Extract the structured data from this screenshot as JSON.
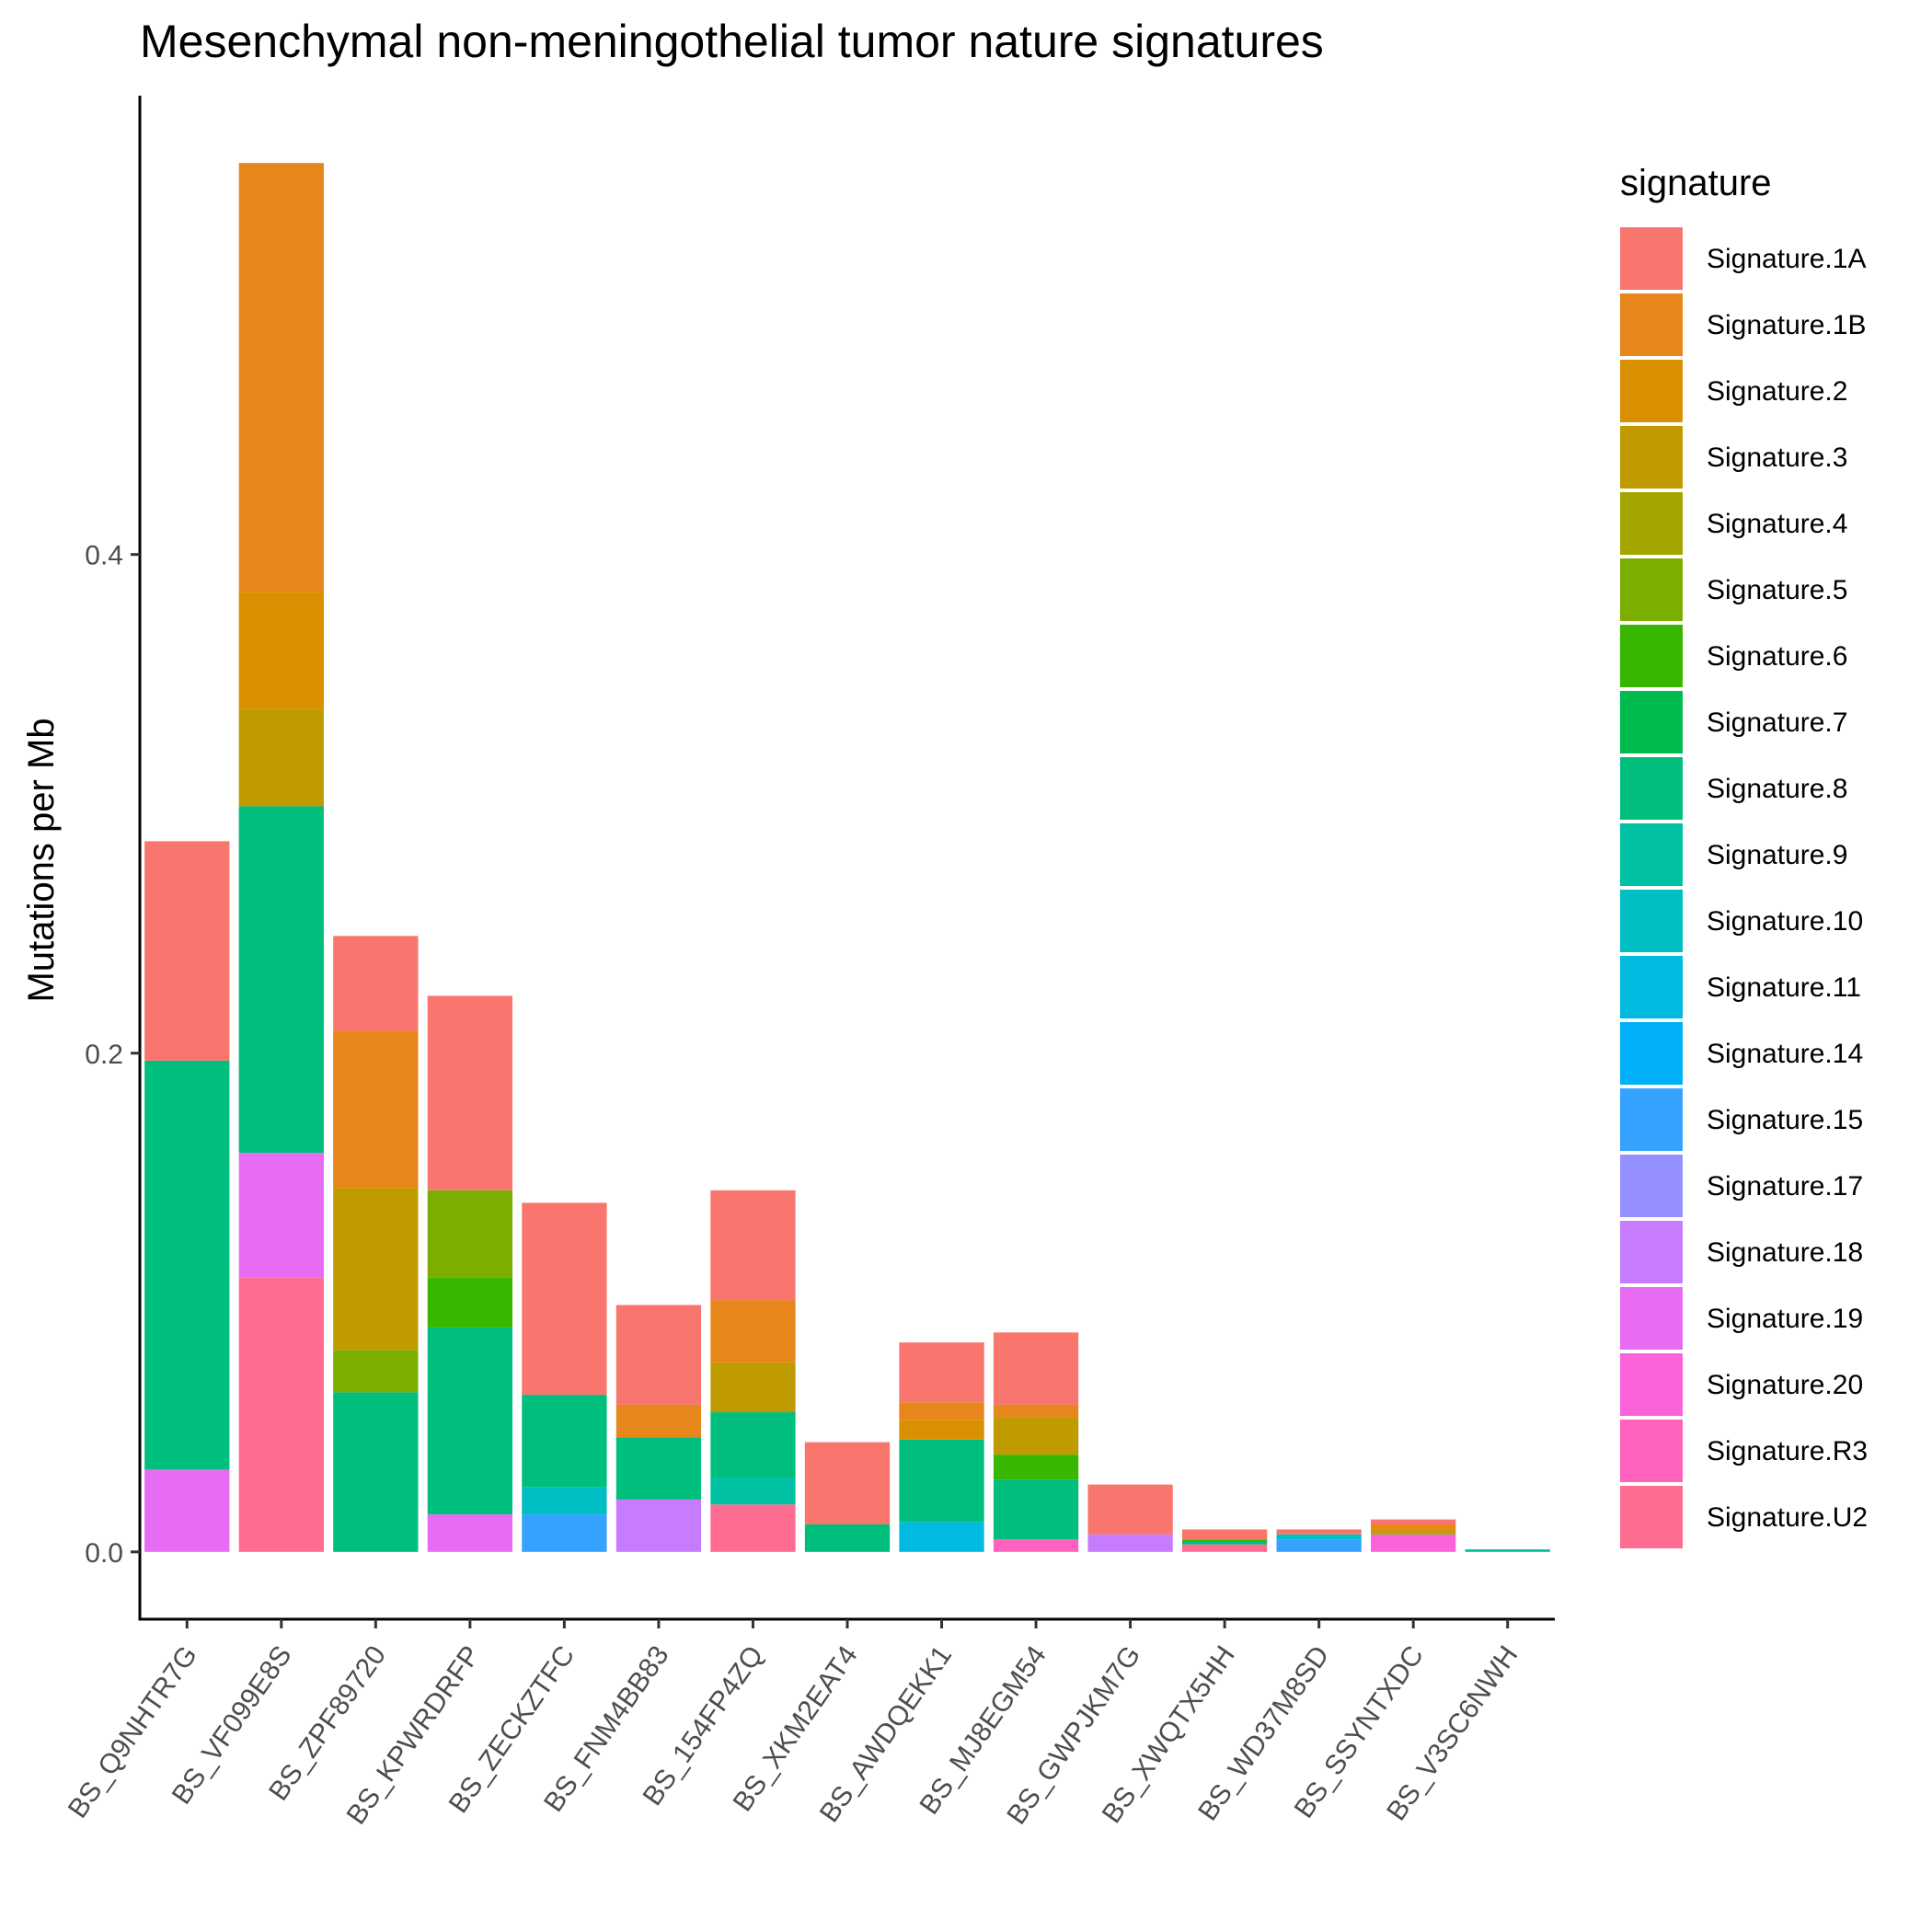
{
  "chart_data": {
    "type": "bar",
    "stacked": true,
    "title": "Mesenchymal non-meningothelial tumor nature signatures",
    "xlabel": "",
    "ylabel": "Mutations per Mb",
    "ylim": [
      -0.027,
      0.584
    ],
    "yticks": [
      0.0,
      0.2,
      0.4
    ],
    "ytick_labels": [
      "0.0",
      "0.2",
      "0.4"
    ],
    "grid": false,
    "legend": {
      "title": "signature",
      "position": "right"
    },
    "categories": [
      "BS_Q9NHTR7G",
      "BS_VF099E8S",
      "BS_ZPF89720",
      "BS_KPWRDRFP",
      "BS_ZECKZTFC",
      "BS_FNM4BB83",
      "BS_154FP4ZQ",
      "BS_XKM2EAT4",
      "BS_AWDQEKK1",
      "BS_MJ8EGM54",
      "BS_GWPJKM7G",
      "BS_XWQTX5HH",
      "BS_WD37M8SD",
      "BS_SSYNTXDC",
      "BS_V3SC6NWH"
    ],
    "series": [
      {
        "name": "Signature.1A",
        "color": "#F8766D",
        "values": [
          0.088,
          0,
          0.038,
          0.078,
          0.077,
          0.04,
          0.044,
          0.033,
          0.024,
          0.029,
          0.02,
          0.004,
          0.002,
          0.002,
          0
        ]
      },
      {
        "name": "Signature.1B",
        "color": "#E7861B",
        "values": [
          0,
          0.172,
          0.063,
          0,
          0,
          0.013,
          0.025,
          0,
          0.007,
          0.005,
          0,
          0,
          0,
          0.002,
          0
        ]
      },
      {
        "name": "Signature.2",
        "color": "#D89000",
        "values": [
          0,
          0.047,
          0,
          0,
          0,
          0,
          0,
          0,
          0.008,
          0,
          0,
          0,
          0,
          0.001,
          0
        ]
      },
      {
        "name": "Signature.3",
        "color": "#C09B00",
        "values": [
          0,
          0.039,
          0.065,
          0,
          0,
          0,
          0.02,
          0,
          0,
          0.015,
          0,
          0,
          0,
          0,
          0
        ]
      },
      {
        "name": "Signature.4",
        "color": "#A3A500",
        "values": [
          0,
          0,
          0,
          0,
          0,
          0,
          0,
          0,
          0,
          0,
          0,
          0,
          0,
          0.001,
          0
        ]
      },
      {
        "name": "Signature.5",
        "color": "#7CAE00",
        "values": [
          0,
          0,
          0.017,
          0.035,
          0,
          0,
          0,
          0,
          0,
          0,
          0,
          0,
          0,
          0,
          0
        ]
      },
      {
        "name": "Signature.6",
        "color": "#39B600",
        "values": [
          0,
          0,
          0,
          0.02,
          0,
          0,
          0,
          0,
          0,
          0.01,
          0,
          0.001,
          0,
          0,
          0
        ]
      },
      {
        "name": "Signature.7",
        "color": "#00BB4E",
        "values": [
          0,
          0,
          0,
          0,
          0,
          0,
          0,
          0,
          0,
          0,
          0,
          0,
          0,
          0,
          0
        ]
      },
      {
        "name": "Signature.8",
        "color": "#00BF7D",
        "values": [
          0.164,
          0.139,
          0.064,
          0.075,
          0.037,
          0.025,
          0.026,
          0.011,
          0.033,
          0.024,
          0,
          0.001,
          0,
          0,
          0
        ]
      },
      {
        "name": "Signature.9",
        "color": "#00C1A3",
        "values": [
          0,
          0,
          0,
          0,
          0,
          0,
          0.011,
          0,
          0,
          0,
          0,
          0,
          0,
          0,
          0.001
        ]
      },
      {
        "name": "Signature.10",
        "color": "#00BFC4",
        "values": [
          0,
          0,
          0,
          0,
          0.011,
          0,
          0,
          0,
          0,
          0,
          0,
          0,
          0.002,
          0,
          0
        ]
      },
      {
        "name": "Signature.11",
        "color": "#00BAE0",
        "values": [
          0,
          0,
          0,
          0,
          0,
          0,
          0,
          0,
          0.012,
          0,
          0,
          0,
          0,
          0,
          0
        ]
      },
      {
        "name": "Signature.14",
        "color": "#00B0F6",
        "values": [
          0,
          0,
          0,
          0,
          0,
          0,
          0,
          0,
          0,
          0,
          0,
          0,
          0,
          0,
          0
        ]
      },
      {
        "name": "Signature.15",
        "color": "#35A2FF",
        "values": [
          0,
          0,
          0,
          0,
          0.015,
          0,
          0,
          0,
          0,
          0,
          0,
          0,
          0.005,
          0,
          0
        ]
      },
      {
        "name": "Signature.17",
        "color": "#9590FF",
        "values": [
          0,
          0,
          0,
          0,
          0,
          0,
          0,
          0,
          0,
          0,
          0,
          0,
          0,
          0,
          0
        ]
      },
      {
        "name": "Signature.18",
        "color": "#C77CFF",
        "values": [
          0,
          0,
          0,
          0,
          0,
          0.021,
          0,
          0,
          0,
          0,
          0.007,
          0,
          0,
          0,
          0
        ]
      },
      {
        "name": "Signature.19",
        "color": "#E76BF3",
        "values": [
          0.033,
          0.05,
          0,
          0.015,
          0,
          0,
          0,
          0,
          0,
          0,
          0,
          0,
          0,
          0,
          0
        ]
      },
      {
        "name": "Signature.20",
        "color": "#FA62DB",
        "values": [
          0,
          0,
          0,
          0,
          0,
          0,
          0,
          0,
          0,
          0,
          0,
          0,
          0,
          0.007,
          0
        ]
      },
      {
        "name": "Signature.R3",
        "color": "#FF62BC",
        "values": [
          0,
          0,
          0,
          0,
          0,
          0,
          0,
          0,
          0,
          0.005,
          0,
          0,
          0,
          0,
          0
        ]
      },
      {
        "name": "Signature.U2",
        "color": "#FF6C91",
        "values": [
          0,
          0.11,
          0,
          0,
          0,
          0,
          0.019,
          0,
          0,
          0,
          0,
          0.003,
          0,
          0,
          0
        ]
      }
    ]
  }
}
